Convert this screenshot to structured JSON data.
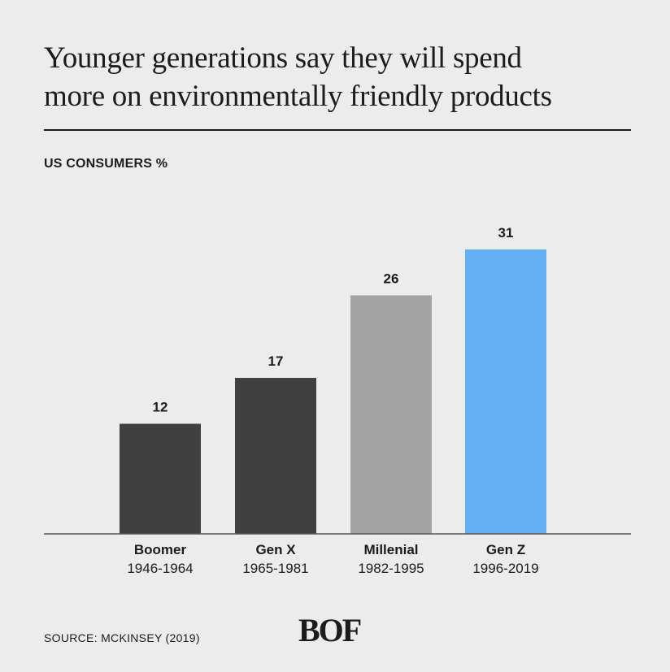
{
  "header": {
    "title_line1": "Younger generations say they will spend",
    "title_line2": "more on environmentally friendly products",
    "subtitle": "US CONSUMERS %"
  },
  "footer": {
    "source": "SOURCE: MCKINSEY (2019)",
    "logo_text": "BOF"
  },
  "colors": {
    "dark_bar": "#404040",
    "gray_bar": "#a3a3a3",
    "highlight_bar": "#63b0f4",
    "background": "#ececec",
    "text": "#1c1c1c"
  },
  "chart_data": {
    "type": "bar",
    "title": "Younger generations say they will spend more on environmentally friendly products",
    "ylabel": "US CONSUMERS %",
    "categories": [
      "Boomer",
      "Gen X",
      "Millenial",
      "Gen Z"
    ],
    "category_sublabels": [
      "1946-1964",
      "1965-1981",
      "1982-1995",
      "1996-2019"
    ],
    "values": [
      12,
      17,
      26,
      31
    ],
    "bar_colors": [
      "#404040",
      "#404040",
      "#a3a3a3",
      "#63b0f4"
    ],
    "ylim": [
      0,
      31
    ],
    "grid": false,
    "legend": "none"
  }
}
